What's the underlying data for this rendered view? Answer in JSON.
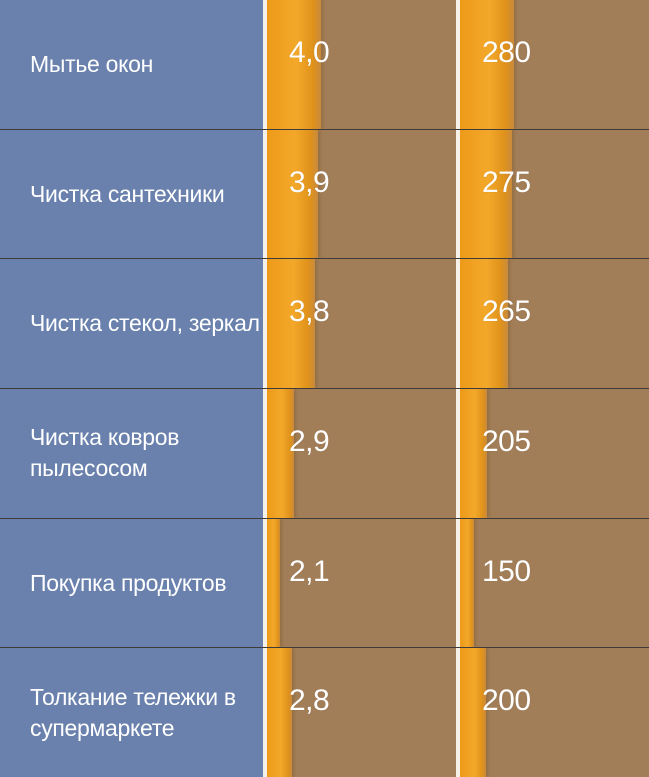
{
  "chart_data": {
    "type": "table",
    "rows": [
      {
        "label": "Мытье окон",
        "value1": "4,0",
        "value2": "280",
        "v1": 4.0,
        "v2": 280
      },
      {
        "label": "Чистка сантехники",
        "value1": "3,9",
        "value2": "275",
        "v1": 3.9,
        "v2": 275
      },
      {
        "label": "Чистка стекол, зеркал",
        "value1": "3,8",
        "value2": "265",
        "v1": 3.8,
        "v2": 265
      },
      {
        "label": "Чистка ковров пылесосом",
        "value1": "2,9",
        "value2": "205",
        "v1": 2.9,
        "v2": 205
      },
      {
        "label": "Покупка продуктов",
        "value1": "2,1",
        "value2": "150",
        "v1": 2.1,
        "v2": 150
      },
      {
        "label": "Толкание тележки в супермаркете",
        "value1": "2,8",
        "value2": "200",
        "v1": 2.8,
        "v2": 200
      }
    ]
  },
  "colors": {
    "label_bg": "#6a81ad",
    "cell_bg": "#a27e58",
    "bar": "#f3a82a",
    "separator": "#f6f1e8"
  }
}
